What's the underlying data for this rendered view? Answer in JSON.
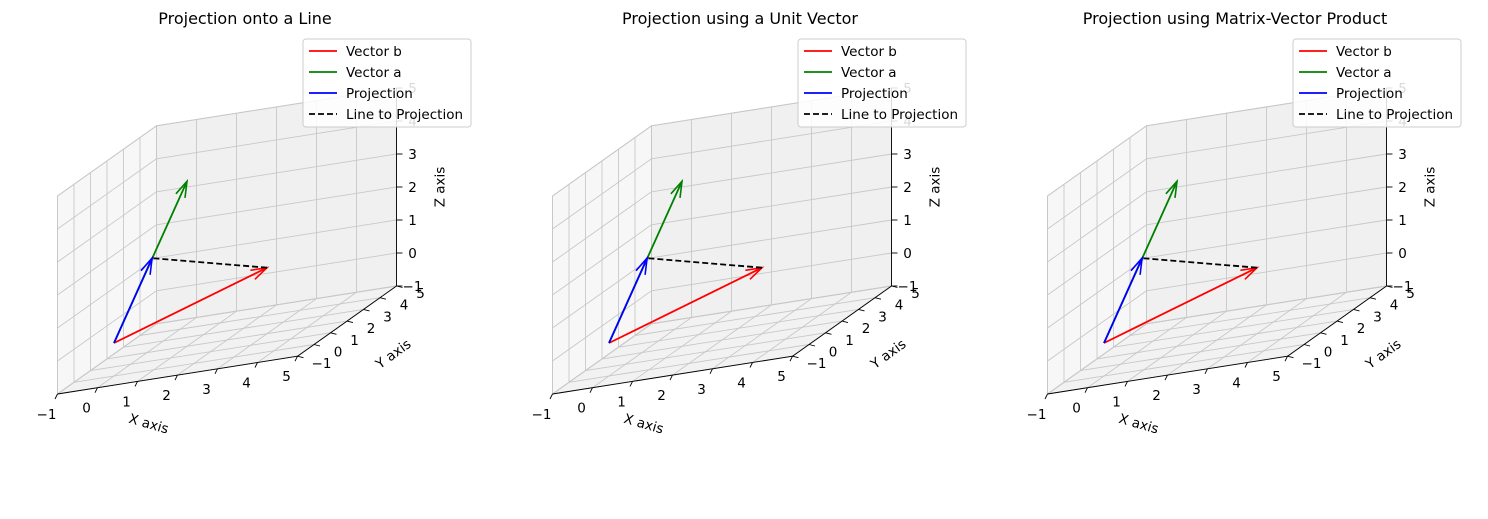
{
  "colors": {
    "vector_b": "#ff0000",
    "vector_a": "#008000",
    "projection": "#0000ff",
    "line_to_projection": "#000000",
    "pane_left": "#f7f7f7",
    "pane_right": "#f0f0f0",
    "pane_floor": "#f2f2f2",
    "grid": "#c8c8c8"
  },
  "chart_data": [
    {
      "type": "line3d",
      "title": "Projection onto a Line",
      "xlabel": "X axis",
      "ylabel": "Y axis",
      "zlabel": "Z axis",
      "xlim": [
        -1,
        5
      ],
      "ylim": [
        -1,
        5
      ],
      "zlim": [
        -1,
        5
      ],
      "ticks": [
        -1,
        0,
        1,
        2,
        3,
        4,
        5
      ],
      "tick_labels": [
        "−1",
        "0",
        "1",
        "2",
        "3",
        "4",
        "5"
      ],
      "grid": true,
      "legend_position": "top-right",
      "legend": [
        "Vector b",
        "Vector a",
        "Projection",
        "Line to Projection"
      ],
      "series": [
        {
          "name": "Vector b",
          "color_key": "vector_b",
          "style": "arrow",
          "from": [
            0,
            0,
            0
          ],
          "to": [
            3,
            2,
            1
          ]
        },
        {
          "name": "Vector a",
          "color_key": "vector_a",
          "style": "arrow",
          "from": [
            0,
            0,
            0
          ],
          "to": [
            1,
            2,
            4
          ]
        },
        {
          "name": "Projection",
          "color_key": "projection",
          "style": "arrow",
          "from": [
            0,
            0,
            0
          ],
          "to": [
            0.52,
            1.05,
            2.1
          ]
        },
        {
          "name": "Line to Projection",
          "color_key": "line_to_projection",
          "style": "dashed",
          "from": [
            3,
            2,
            1
          ],
          "to": [
            0.52,
            1.05,
            2.1
          ]
        }
      ]
    },
    {
      "type": "line3d",
      "title": "Projection using a Unit Vector",
      "xlabel": "X axis",
      "ylabel": "Y axis",
      "zlabel": "Z axis",
      "xlim": [
        -1,
        5
      ],
      "ylim": [
        -1,
        5
      ],
      "zlim": [
        -1,
        5
      ],
      "ticks": [
        -1,
        0,
        1,
        2,
        3,
        4,
        5
      ],
      "tick_labels": [
        "−1",
        "0",
        "1",
        "2",
        "3",
        "4",
        "5"
      ],
      "grid": true,
      "legend_position": "top-right",
      "legend": [
        "Vector b",
        "Vector a",
        "Projection",
        "Line to Projection"
      ],
      "series": [
        {
          "name": "Vector b",
          "color_key": "vector_b",
          "style": "arrow",
          "from": [
            0,
            0,
            0
          ],
          "to": [
            3,
            2,
            1
          ]
        },
        {
          "name": "Vector a",
          "color_key": "vector_a",
          "style": "arrow",
          "from": [
            0,
            0,
            0
          ],
          "to": [
            1,
            2,
            4
          ]
        },
        {
          "name": "Projection",
          "color_key": "projection",
          "style": "arrow",
          "from": [
            0,
            0,
            0
          ],
          "to": [
            0.52,
            1.05,
            2.1
          ]
        },
        {
          "name": "Line to Projection",
          "color_key": "line_to_projection",
          "style": "dashed",
          "from": [
            3,
            2,
            1
          ],
          "to": [
            0.52,
            1.05,
            2.1
          ]
        }
      ]
    },
    {
      "type": "line3d",
      "title": "Projection using Matrix-Vector Product",
      "xlabel": "X axis",
      "ylabel": "Y axis",
      "zlabel": "Z axis",
      "xlim": [
        -1,
        5
      ],
      "ylim": [
        -1,
        5
      ],
      "zlim": [
        -1,
        5
      ],
      "ticks": [
        -1,
        0,
        1,
        2,
        3,
        4,
        5
      ],
      "tick_labels": [
        "−1",
        "0",
        "1",
        "2",
        "3",
        "4",
        "5"
      ],
      "grid": true,
      "legend_position": "top-right",
      "legend": [
        "Vector b",
        "Vector a",
        "Projection",
        "Line to Projection"
      ],
      "series": [
        {
          "name": "Vector b",
          "color_key": "vector_b",
          "style": "arrow",
          "from": [
            0,
            0,
            0
          ],
          "to": [
            3,
            2,
            1
          ]
        },
        {
          "name": "Vector a",
          "color_key": "vector_a",
          "style": "arrow",
          "from": [
            0,
            0,
            0
          ],
          "to": [
            1,
            2,
            4
          ]
        },
        {
          "name": "Projection",
          "color_key": "projection",
          "style": "arrow",
          "from": [
            0,
            0,
            0
          ],
          "to": [
            0.52,
            1.05,
            2.1
          ]
        },
        {
          "name": "Line to Projection",
          "color_key": "line_to_projection",
          "style": "dashed",
          "from": [
            3,
            2,
            1
          ],
          "to": [
            0.52,
            1.05,
            2.1
          ]
        }
      ]
    }
  ]
}
